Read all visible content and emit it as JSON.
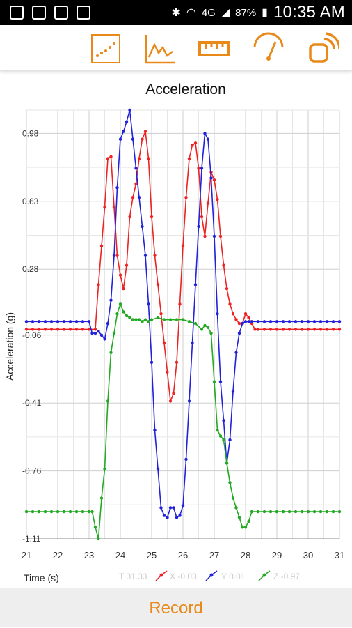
{
  "status_bar": {
    "battery": "87%",
    "time": "10:35 AM",
    "network": "4G",
    "icons": [
      "gallery-icon",
      "notification-icon",
      "voicemail-icon",
      "clipboard-icon",
      "bluetooth-icon",
      "wifi-icon",
      "signal-icon",
      "battery-icon"
    ]
  },
  "toolbar": {
    "tools": [
      {
        "name": "scatter-plot-tool",
        "icon": "scatter-plot-icon",
        "selected": true
      },
      {
        "name": "line-graph-tool",
        "icon": "line-graph-icon",
        "selected": false
      },
      {
        "name": "ruler-tool",
        "icon": "ruler-icon",
        "selected": false
      },
      {
        "name": "gauge-tool",
        "icon": "gauge-icon",
        "selected": false
      },
      {
        "name": "connect-tool",
        "icon": "connect-icon",
        "selected": false
      }
    ],
    "accent": "#E8891A"
  },
  "chart_data": {
    "type": "line",
    "title": "Acceleration",
    "xlabel": "Time (s)",
    "ylabel": "Acceleration (g)",
    "xlim": [
      21,
      31
    ],
    "ylim": [
      -1.11,
      1.1
    ],
    "x_ticks": [
      "21",
      "22",
      "23",
      "24",
      "25",
      "26",
      "27",
      "28",
      "29",
      "30",
      "31"
    ],
    "y_ticks": [
      "0.98",
      "0.63",
      "0.28",
      "-0.06",
      "-0.41",
      "-0.76",
      "-1.11"
    ],
    "grid": true,
    "readout": {
      "t": "T 31.33",
      "x": "X -0.03",
      "y": "Y 0.01",
      "z": "Z -0.97"
    },
    "series": [
      {
        "name": "X",
        "color": "#ee2222",
        "points": [
          [
            23.2,
            -0.03
          ],
          [
            23.3,
            0.2
          ],
          [
            23.4,
            0.4
          ],
          [
            23.5,
            0.6
          ],
          [
            23.6,
            0.85
          ],
          [
            23.7,
            0.86
          ],
          [
            23.8,
            0.6
          ],
          [
            23.9,
            0.35
          ],
          [
            24.0,
            0.25
          ],
          [
            24.1,
            0.18
          ],
          [
            24.2,
            0.3
          ],
          [
            24.3,
            0.55
          ],
          [
            24.4,
            0.65
          ],
          [
            24.5,
            0.72
          ],
          [
            24.6,
            0.85
          ],
          [
            24.7,
            0.95
          ],
          [
            24.8,
            0.99
          ],
          [
            24.9,
            0.85
          ],
          [
            25.0,
            0.55
          ],
          [
            25.1,
            0.35
          ],
          [
            25.2,
            0.2
          ],
          [
            25.3,
            0.05
          ],
          [
            25.4,
            -0.1
          ],
          [
            25.5,
            -0.25
          ],
          [
            25.6,
            -0.4
          ],
          [
            25.7,
            -0.36
          ],
          [
            25.8,
            -0.2
          ],
          [
            25.9,
            0.1
          ],
          [
            26.0,
            0.4
          ],
          [
            26.1,
            0.65
          ],
          [
            26.2,
            0.85
          ],
          [
            26.3,
            0.92
          ],
          [
            26.4,
            0.93
          ],
          [
            26.5,
            0.8
          ],
          [
            26.6,
            0.55
          ],
          [
            26.7,
            0.45
          ],
          [
            26.8,
            0.62
          ],
          [
            26.9,
            0.78
          ],
          [
            27.0,
            0.74
          ],
          [
            27.1,
            0.64
          ],
          [
            27.2,
            0.45
          ],
          [
            27.3,
            0.3
          ],
          [
            27.4,
            0.18
          ],
          [
            27.5,
            0.1
          ],
          [
            27.6,
            0.05
          ],
          [
            27.7,
            0.02
          ],
          [
            27.8,
            0.0
          ],
          [
            27.9,
            0.0
          ],
          [
            28.0,
            0.05
          ],
          [
            28.1,
            0.03
          ],
          [
            28.2,
            0.0
          ],
          [
            28.3,
            -0.03
          ],
          [
            28.4,
            -0.03
          ],
          [
            28.6,
            -0.03
          ],
          [
            28.8,
            -0.03
          ],
          [
            29.0,
            -0.03
          ],
          [
            29.2,
            -0.03
          ],
          [
            29.4,
            -0.03
          ],
          [
            29.6,
            -0.03
          ],
          [
            29.8,
            -0.03
          ],
          [
            30.0,
            -0.03
          ],
          [
            30.2,
            -0.03
          ],
          [
            30.4,
            -0.03
          ],
          [
            30.6,
            -0.03
          ],
          [
            30.8,
            -0.03
          ],
          [
            31.0,
            -0.03
          ]
        ],
        "flat_before": -0.03
      },
      {
        "name": "Y",
        "color": "#2222dd",
        "points": [
          [
            23.1,
            -0.05
          ],
          [
            23.2,
            -0.05
          ],
          [
            23.3,
            -0.04
          ],
          [
            23.4,
            -0.06
          ],
          [
            23.5,
            -0.08
          ],
          [
            23.6,
            0.0
          ],
          [
            23.7,
            0.12
          ],
          [
            23.8,
            0.35
          ],
          [
            23.9,
            0.7
          ],
          [
            24.0,
            0.95
          ],
          [
            24.1,
            0.99
          ],
          [
            24.2,
            1.04
          ],
          [
            24.3,
            1.1
          ],
          [
            24.4,
            0.95
          ],
          [
            24.5,
            0.8
          ],
          [
            24.6,
            0.65
          ],
          [
            24.7,
            0.5
          ],
          [
            24.8,
            0.35
          ],
          [
            24.9,
            0.1
          ],
          [
            25.0,
            -0.2
          ],
          [
            25.1,
            -0.55
          ],
          [
            25.2,
            -0.75
          ],
          [
            25.3,
            -0.95
          ],
          [
            25.4,
            -0.99
          ],
          [
            25.5,
            -1.0
          ],
          [
            25.6,
            -0.95
          ],
          [
            25.7,
            -0.95
          ],
          [
            25.8,
            -1.0
          ],
          [
            25.9,
            -0.99
          ],
          [
            26.0,
            -0.94
          ],
          [
            26.1,
            -0.7
          ],
          [
            26.2,
            -0.4
          ],
          [
            26.3,
            -0.1
          ],
          [
            26.4,
            0.2
          ],
          [
            26.5,
            0.5
          ],
          [
            26.6,
            0.8
          ],
          [
            26.7,
            0.98
          ],
          [
            26.8,
            0.95
          ],
          [
            26.9,
            0.75
          ],
          [
            27.0,
            0.45
          ],
          [
            27.1,
            0.05
          ],
          [
            27.2,
            -0.3
          ],
          [
            27.3,
            -0.5
          ],
          [
            27.4,
            -0.72
          ],
          [
            27.5,
            -0.6
          ],
          [
            27.6,
            -0.35
          ],
          [
            27.7,
            -0.15
          ],
          [
            27.8,
            -0.05
          ],
          [
            27.9,
            0.0
          ],
          [
            28.0,
            0.01
          ],
          [
            28.1,
            0.01
          ],
          [
            28.2,
            0.01
          ],
          [
            28.4,
            0.01
          ],
          [
            28.6,
            0.01
          ],
          [
            28.8,
            0.01
          ],
          [
            29.0,
            0.01
          ],
          [
            29.2,
            0.01
          ],
          [
            29.4,
            0.01
          ],
          [
            29.6,
            0.01
          ],
          [
            29.8,
            0.01
          ],
          [
            30.0,
            0.01
          ],
          [
            30.2,
            0.01
          ],
          [
            30.4,
            0.01
          ],
          [
            30.6,
            0.01
          ],
          [
            30.8,
            0.01
          ],
          [
            31.0,
            0.01
          ]
        ],
        "flat_before": 0.01
      },
      {
        "name": "Z",
        "color": "#22aa22",
        "points": [
          [
            23.1,
            -0.97
          ],
          [
            23.2,
            -1.05
          ],
          [
            23.3,
            -1.11
          ],
          [
            23.4,
            -0.9
          ],
          [
            23.5,
            -0.75
          ],
          [
            23.6,
            -0.4
          ],
          [
            23.7,
            -0.15
          ],
          [
            23.8,
            -0.05
          ],
          [
            23.9,
            0.05
          ],
          [
            24.0,
            0.1
          ],
          [
            24.1,
            0.06
          ],
          [
            24.2,
            0.04
          ],
          [
            24.3,
            0.03
          ],
          [
            24.4,
            0.02
          ],
          [
            24.5,
            0.02
          ],
          [
            24.6,
            0.02
          ],
          [
            24.7,
            0.01
          ],
          [
            24.8,
            0.02
          ],
          [
            24.9,
            0.01
          ],
          [
            25.0,
            0.02
          ],
          [
            25.2,
            0.03
          ],
          [
            25.4,
            0.02
          ],
          [
            25.6,
            0.02
          ],
          [
            25.8,
            0.02
          ],
          [
            26.0,
            0.02
          ],
          [
            26.2,
            0.01
          ],
          [
            26.4,
            0.0
          ],
          [
            26.6,
            -0.03
          ],
          [
            26.7,
            -0.01
          ],
          [
            26.8,
            -0.02
          ],
          [
            26.9,
            -0.05
          ],
          [
            27.0,
            -0.3
          ],
          [
            27.1,
            -0.55
          ],
          [
            27.2,
            -0.58
          ],
          [
            27.3,
            -0.6
          ],
          [
            27.4,
            -0.72
          ],
          [
            27.5,
            -0.82
          ],
          [
            27.6,
            -0.9
          ],
          [
            27.7,
            -0.95
          ],
          [
            27.8,
            -1.0
          ],
          [
            27.9,
            -1.05
          ],
          [
            28.0,
            -1.05
          ],
          [
            28.1,
            -1.02
          ],
          [
            28.2,
            -0.97
          ],
          [
            28.4,
            -0.97
          ],
          [
            28.6,
            -0.97
          ],
          [
            28.8,
            -0.97
          ],
          [
            29.0,
            -0.97
          ],
          [
            29.2,
            -0.97
          ],
          [
            29.4,
            -0.97
          ],
          [
            29.6,
            -0.97
          ],
          [
            29.8,
            -0.97
          ],
          [
            30.0,
            -0.97
          ],
          [
            30.2,
            -0.97
          ],
          [
            30.4,
            -0.97
          ],
          [
            30.6,
            -0.97
          ],
          [
            30.8,
            -0.97
          ],
          [
            31.0,
            -0.97
          ]
        ],
        "flat_before": -0.97
      }
    ]
  },
  "record_button": {
    "label": "Record"
  }
}
